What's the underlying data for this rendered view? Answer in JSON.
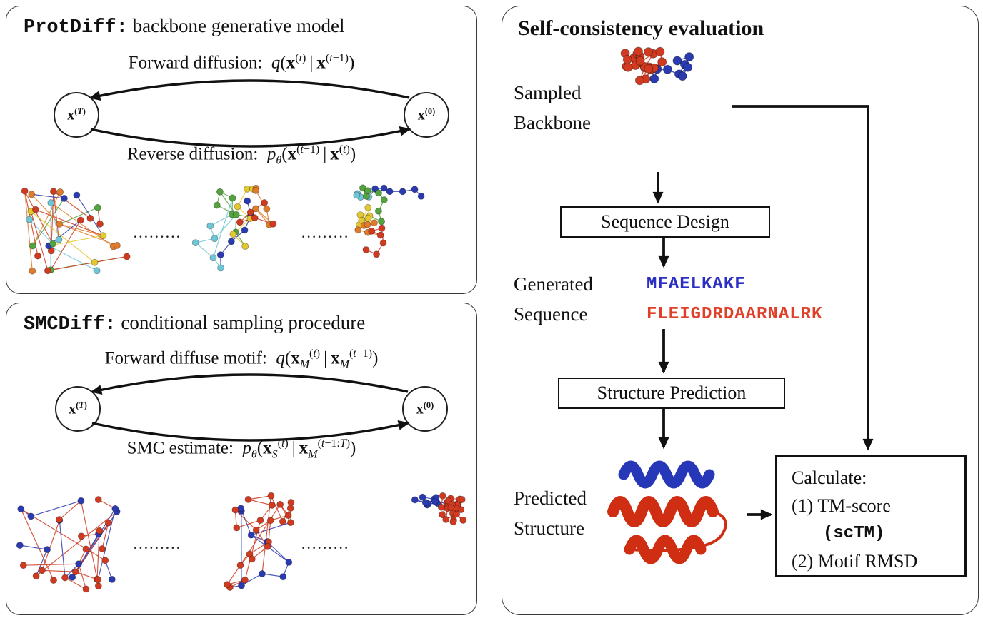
{
  "colors": {
    "red": "#d03a20",
    "blue": "#2a3ab0",
    "green": "#53a33e",
    "cyan": "#6fc6d6",
    "yellow": "#e3c832",
    "orange": "#df7b2a",
    "sequence_blue": "#2b2fc3",
    "sequence_red": "#e0402a"
  },
  "protdiff": {
    "title_code": "ProtDiff:",
    "title_rest": " backbone generative model",
    "forward_eq": "Forward diffusion:&nbsp;&nbsp;<i>q</i>(<b>x</b><sup>(<i>t</i>)</sup>&thinsp;|&thinsp;<b>x</b><sup>(<i>t</i>−1)</sup>)",
    "reverse_eq": "Reverse diffusion:&nbsp;&nbsp;<i>p</i><sub><i>θ</i></sub>(<b>x</b><sup>(<i>t</i>−1)</sup>&thinsp;|&thinsp;<b>x</b><sup>(<i>t</i>)</sup>)",
    "node_T": "<b>x</b><sup>(<i>T</i>)</sup>",
    "node_0": "<b>x</b><sup>(0)</sup>",
    "dots": "........."
  },
  "smcdiff": {
    "title_code": "SMCDiff:",
    "title_rest": " conditional sampling procedure",
    "forward_eq": "Forward diffuse motif:&nbsp;&nbsp;<i>q</i>(<b>x</b><sub><i>M</i></sub><sup>(<i>t</i>)</sup>&thinsp;|&thinsp;<b>x</b><sub><i>M</i></sub><sup>(<i>t</i>−1)</sup>)",
    "smc_eq": "SMC estimate:&nbsp;&nbsp;<i>p</i><sub><i>θ</i></sub>(<b>x</b><sub><i>S</i></sub><sup>(<i>t</i>)</sup>&thinsp;|&thinsp;<b>x</b><sub><i>M</i></sub><sup>(<i>t</i>−1:<i>T</i>)</sup>)",
    "node_T": "<b>x</b><sup>(<i>T</i>)</sup>",
    "node_0": "<b>x</b><sup>(0)</sup>",
    "dots": "........."
  },
  "evaluation": {
    "title": "Self-consistency evaluation",
    "sampled_line1": "Sampled",
    "sampled_line2": "Backbone",
    "sequence_design": "Sequence Design",
    "generated_line1": "Generated",
    "generated_line2": "Sequence",
    "sequence_blue_text": "MFAELKAKF",
    "sequence_red_text": "FLEIGDRDAARNALRK",
    "structure_prediction": "Structure Prediction",
    "predicted_line1": "Predicted",
    "predicted_line2": "Structure",
    "calc_title": "Calculate:",
    "calc_item1": "(1) TM-score",
    "calc_item1_sub": "(scTM)",
    "calc_item2": "(2) Motif RMSD"
  }
}
